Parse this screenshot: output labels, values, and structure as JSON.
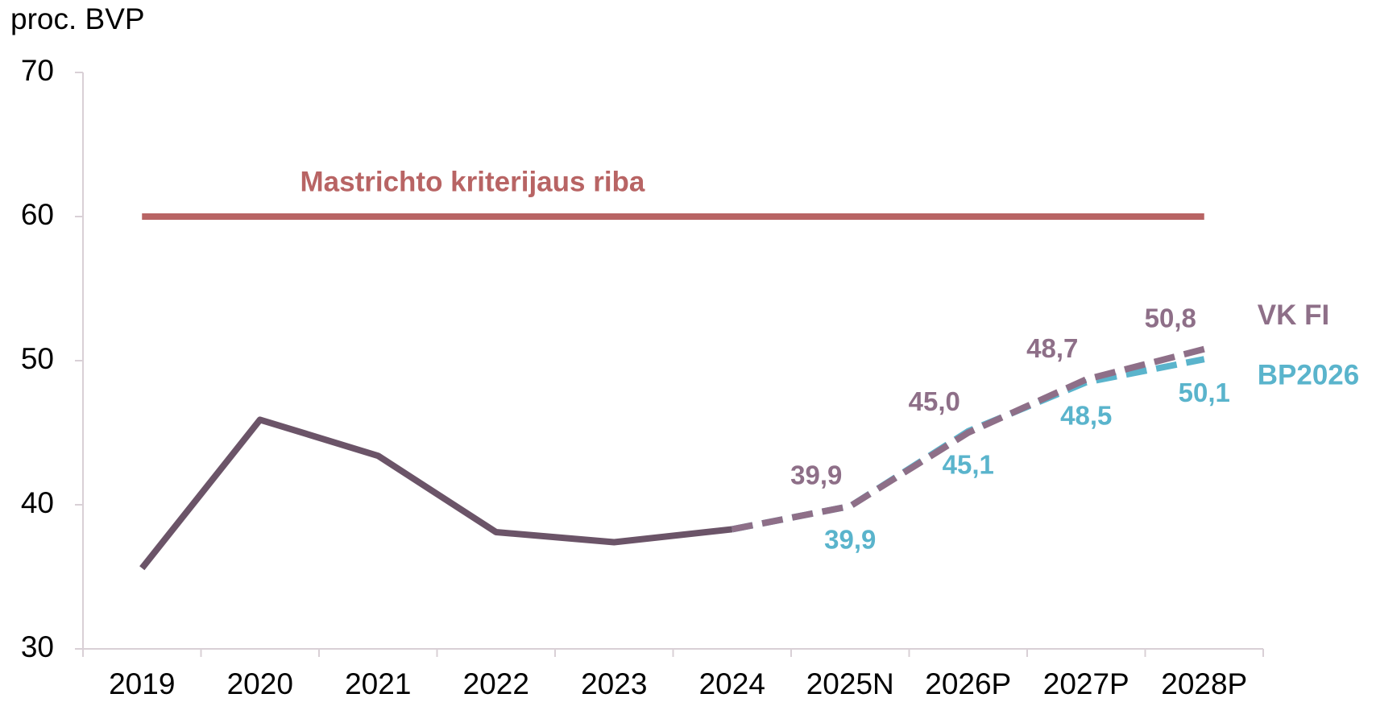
{
  "chart_data": {
    "type": "line",
    "ylabel": "proc. BVP",
    "categories": [
      "2019",
      "2020",
      "2021",
      "2022",
      "2023",
      "2024",
      "2025N",
      "2026P",
      "2027P",
      "2028P"
    ],
    "ylim": [
      30,
      70
    ],
    "yticks": [
      30,
      40,
      50,
      60,
      70
    ],
    "series": [
      {
        "color": "#6b5468",
        "dashed": false,
        "values": [
          35.6,
          45.9,
          43.4,
          38.1,
          37.4,
          38.3,
          null,
          null,
          null,
          null
        ]
      },
      {
        "name": "Mastrichto kriterijaus riba",
        "color": "#b86464",
        "dashed": false,
        "values": [
          60,
          60,
          60,
          60,
          60,
          60,
          60,
          60,
          60,
          60
        ]
      },
      {
        "name": "BP2026",
        "color": "#5ab4cc",
        "dashed": true,
        "values": [
          null,
          null,
          null,
          null,
          null,
          38.3,
          39.9,
          45.1,
          48.5,
          50.1
        ],
        "value_labels": [
          null,
          null,
          null,
          null,
          null,
          null,
          "39,9",
          "45,1",
          "48,5",
          "50,1"
        ]
      },
      {
        "name": "VK FI",
        "color": "#8e6f88",
        "dashed": true,
        "values": [
          null,
          null,
          null,
          null,
          null,
          38.3,
          39.9,
          45.0,
          48.7,
          50.8
        ],
        "value_labels": [
          null,
          null,
          null,
          null,
          null,
          null,
          "39,9",
          "45,0",
          "48,7",
          "50,8"
        ]
      }
    ]
  }
}
